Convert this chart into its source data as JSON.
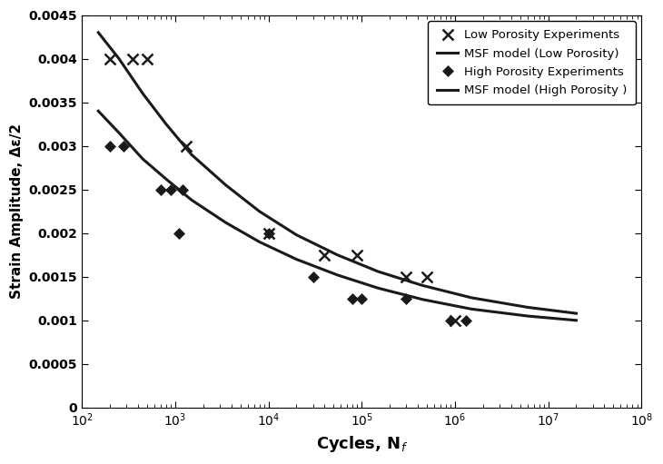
{
  "xlabel": "Cycles, N$_f$",
  "ylabel": "Strain Amplitude, Δε/2",
  "xlim": [
    100,
    100000000
  ],
  "ylim": [
    0,
    0.0045
  ],
  "yticks": [
    0,
    0.0005,
    0.001,
    0.0015,
    0.002,
    0.0025,
    0.003,
    0.0035,
    0.004,
    0.0045
  ],
  "low_porosity_x": [
    200,
    350,
    500,
    1300,
    10000,
    40000,
    90000,
    300000,
    500000,
    1000000
  ],
  "low_porosity_y": [
    0.004,
    0.004,
    0.004,
    0.003,
    0.002,
    0.00175,
    0.00175,
    0.0015,
    0.0015,
    0.001
  ],
  "high_porosity_x": [
    200,
    280,
    700,
    900,
    1100,
    1200,
    10000,
    30000,
    80000,
    100000,
    300000,
    900000,
    1300000
  ],
  "high_porosity_y": [
    0.003,
    0.003,
    0.0025,
    0.0025,
    0.002,
    0.0025,
    0.002,
    0.0015,
    0.00125,
    0.00125,
    0.00125,
    0.001,
    0.001
  ],
  "low_model_x": [
    150,
    250,
    450,
    800,
    1500,
    3500,
    8000,
    20000,
    55000,
    150000,
    450000,
    1500000,
    6000000,
    20000000
  ],
  "low_model_y": [
    0.0043,
    0.004,
    0.0036,
    0.00325,
    0.0029,
    0.00255,
    0.00225,
    0.00198,
    0.00175,
    0.00156,
    0.0014,
    0.00126,
    0.00115,
    0.00108
  ],
  "high_model_x": [
    150,
    250,
    450,
    800,
    1500,
    3500,
    8000,
    20000,
    55000,
    150000,
    450000,
    1500000,
    6000000,
    20000000
  ],
  "high_model_y": [
    0.0034,
    0.00315,
    0.00285,
    0.00262,
    0.00238,
    0.00212,
    0.0019,
    0.0017,
    0.00152,
    0.00137,
    0.00124,
    0.00113,
    0.00105,
    0.001
  ],
  "legend_labels": [
    "Low Porosity Experiments",
    "MSF model (Low Porosity)",
    "High Porosity Experiments",
    "MSF model (High Porosity )"
  ],
  "color": "#1a1a1a",
  "background_color": "#ffffff"
}
